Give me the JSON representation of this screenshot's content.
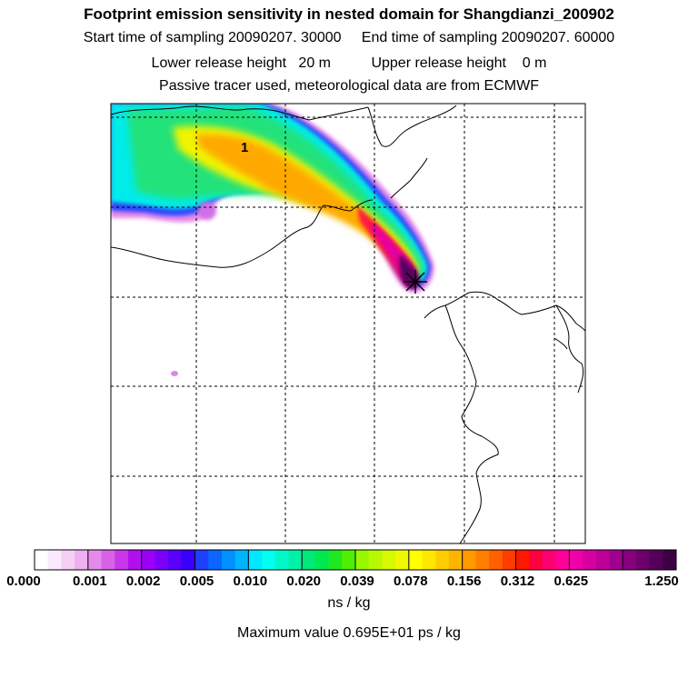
{
  "header": {
    "title": "Footprint emission sensitivity in nested domain for Shangdianzi_200902",
    "sampling_line": "Start time of sampling 20090207. 30000     End time of sampling 20090207. 60000",
    "release_line": "Lower release height   20 m          Upper release height    0 m",
    "tracer_line": "Passive tracer used, meteorological data are from ECMWF"
  },
  "map": {
    "marker_label": "1",
    "colors": {
      "frame": "#000000",
      "coast": "#000000",
      "grid": "#000000"
    }
  },
  "colorbar": {
    "tick_labels": [
      "0.000",
      "0.001",
      "0.002",
      "0.005",
      "0.010",
      "0.020",
      "0.039",
      "0.078",
      "0.156",
      "0.312",
      "0.625",
      "1.250"
    ],
    "segments": [
      [
        "#ffffff",
        "#fbeafb",
        "#f5d0f5",
        "#eeb0f0"
      ],
      [
        "#e58ae8",
        "#d862e6",
        "#c838e8",
        "#b010ee"
      ],
      [
        "#9a00f5",
        "#7a00f8",
        "#5800fa",
        "#3800fc"
      ],
      [
        "#2040ff",
        "#0a66ff",
        "#0090ff",
        "#00b4ff"
      ],
      [
        "#00e8ff",
        "#00ffee",
        "#00f8c8",
        "#00f0a8"
      ],
      [
        "#00e878",
        "#00e850",
        "#20e820",
        "#50ee00"
      ],
      [
        "#98f800",
        "#b8f800",
        "#d6f800",
        "#f0f800"
      ],
      [
        "#ffff00",
        "#ffe800",
        "#ffce00",
        "#ffb400"
      ],
      [
        "#ff9a00",
        "#ff7e00",
        "#ff6000",
        "#ff3c00"
      ],
      [
        "#ff1800",
        "#ff0040",
        "#ff0070",
        "#ff009a"
      ],
      [
        "#f000a8",
        "#d600a0",
        "#bc0098",
        "#a00090"
      ],
      [
        "#86007e",
        "#6c006a",
        "#540058",
        "#3e0044"
      ]
    ],
    "units": "ns / kg",
    "max_value": "Maximum value  0.695E+01 ps / kg"
  }
}
